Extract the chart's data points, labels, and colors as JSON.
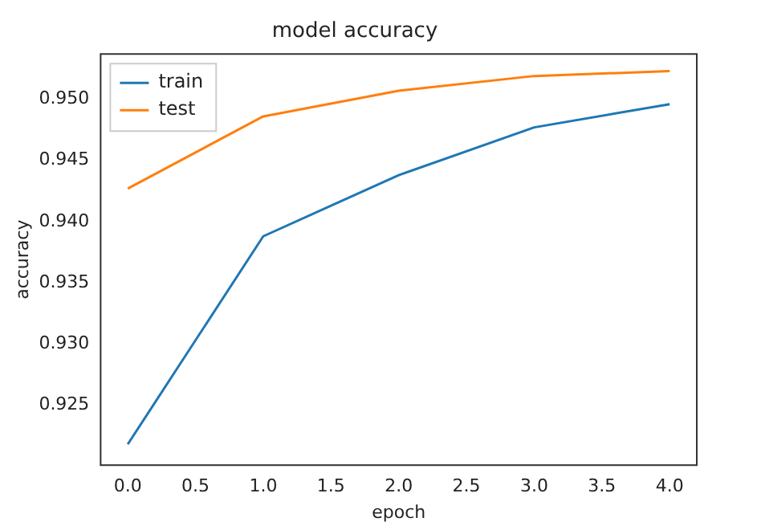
{
  "chart_data": {
    "type": "line",
    "title": "model accuracy",
    "xlabel": "epoch",
    "ylabel": "accuracy",
    "x": [
      0,
      1,
      2,
      3,
      4
    ],
    "series": [
      {
        "name": "train",
        "color": "#1f77b4",
        "values": [
          0.9218,
          0.9388,
          0.9438,
          0.9477,
          0.9496
        ]
      },
      {
        "name": "test",
        "color": "#ff7f0e",
        "values": [
          0.9427,
          0.9486,
          0.9507,
          0.9519,
          0.9523
        ]
      }
    ],
    "xlim": [
      -0.2,
      4.2
    ],
    "xticks": [
      {
        "value": 0,
        "label": "0.0"
      },
      {
        "value": 0.5,
        "label": "0.5"
      },
      {
        "value": 1,
        "label": "1.0"
      },
      {
        "value": 1.5,
        "label": "1.5"
      },
      {
        "value": 2,
        "label": "2.0"
      },
      {
        "value": 2.5,
        "label": "2.5"
      },
      {
        "value": 3,
        "label": "3.0"
      },
      {
        "value": 3.5,
        "label": "3.5"
      },
      {
        "value": 4,
        "label": "4.0"
      }
    ],
    "ylim": [
      0.9201,
      0.9537
    ],
    "yticks": [
      {
        "value": 0.925,
        "label": "0.925"
      },
      {
        "value": 0.93,
        "label": "0.930"
      },
      {
        "value": 0.935,
        "label": "0.935"
      },
      {
        "value": 0.94,
        "label": "0.940"
      },
      {
        "value": 0.945,
        "label": "0.945"
      },
      {
        "value": 0.95,
        "label": "0.950"
      }
    ],
    "grid": false,
    "legend": "top left",
    "marker": "none",
    "line_style": "solid"
  }
}
